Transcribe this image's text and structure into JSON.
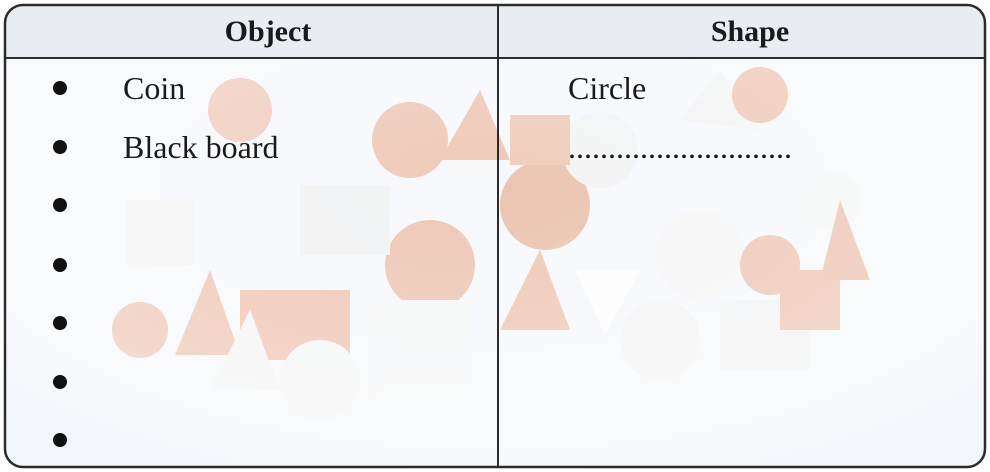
{
  "table": {
    "header": [
      "Object",
      "Shape"
    ],
    "rows": [
      [
        "Coin",
        "Circle"
      ],
      [
        "Black board",
        "............................"
      ]
    ]
  }
}
